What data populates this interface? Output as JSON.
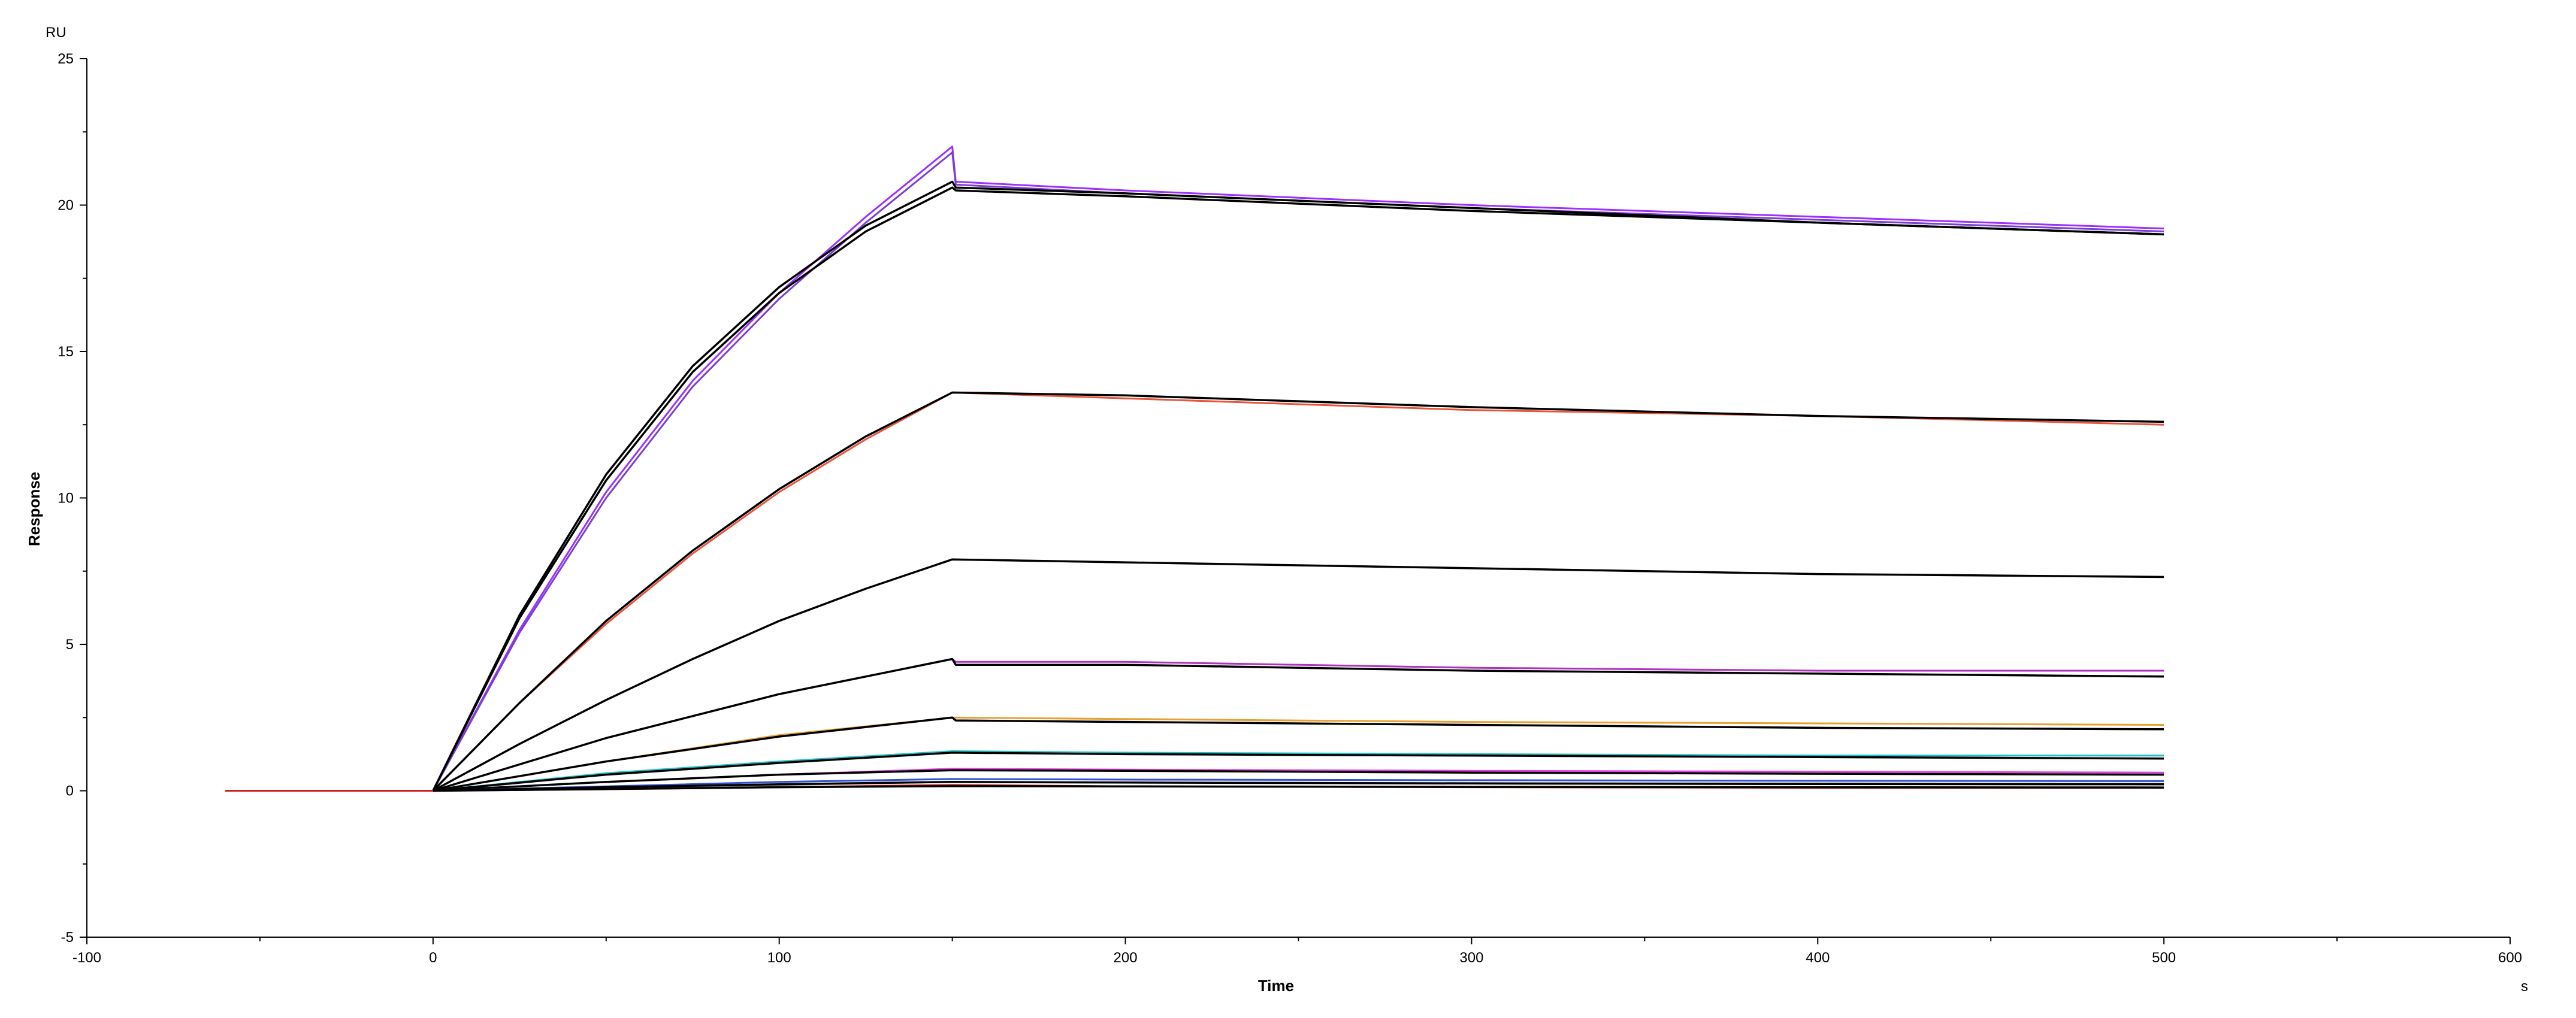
{
  "chart_data": {
    "type": "line",
    "xlabel": "Time",
    "ylabel": "Response",
    "x_unit": "s",
    "y_unit": "RU",
    "xlim": [
      -100,
      600
    ],
    "ylim": [
      -5,
      25
    ],
    "x_ticks": [
      -100,
      0,
      100,
      200,
      300,
      400,
      500,
      600
    ],
    "y_ticks": [
      -5,
      0,
      5,
      10,
      15,
      20,
      25
    ],
    "x_tick_labels": [
      "-100",
      "0",
      "100",
      "200",
      "300",
      "400",
      "500",
      "600"
    ],
    "y_tick_labels": [
      "-5",
      "0",
      "5",
      "10",
      "15",
      "20",
      "25"
    ],
    "grid": false,
    "legend": "none",
    "series": [
      {
        "color": "#9b30ff",
        "points": [
          [
            -60,
            0
          ],
          [
            0,
            0
          ],
          [
            25,
            5.5
          ],
          [
            50,
            10.2
          ],
          [
            75,
            14.0
          ],
          [
            100,
            17.0
          ],
          [
            125,
            19.6
          ],
          [
            150,
            22.0
          ],
          [
            151,
            20.8
          ],
          [
            200,
            20.5
          ],
          [
            300,
            20.0
          ],
          [
            400,
            19.6
          ],
          [
            500,
            19.2
          ]
        ]
      },
      {
        "color": "#7a3fd0",
        "points": [
          [
            -60,
            0
          ],
          [
            0,
            0
          ],
          [
            25,
            5.4
          ],
          [
            50,
            10.0
          ],
          [
            75,
            13.8
          ],
          [
            100,
            16.8
          ],
          [
            125,
            19.4
          ],
          [
            150,
            21.8
          ],
          [
            151,
            20.7
          ],
          [
            200,
            20.4
          ],
          [
            300,
            19.9
          ],
          [
            400,
            19.5
          ],
          [
            500,
            19.1
          ]
        ]
      },
      {
        "color": "#000000",
        "points": [
          [
            0,
            0
          ],
          [
            25,
            6.0
          ],
          [
            50,
            10.8
          ],
          [
            75,
            14.5
          ],
          [
            100,
            17.2
          ],
          [
            125,
            19.3
          ],
          [
            150,
            20.8
          ],
          [
            151,
            20.6
          ],
          [
            200,
            20.4
          ],
          [
            300,
            19.9
          ],
          [
            400,
            19.4
          ],
          [
            500,
            19.0
          ]
        ]
      },
      {
        "color": "#000000",
        "points": [
          [
            0,
            0
          ],
          [
            25,
            5.9
          ],
          [
            50,
            10.6
          ],
          [
            75,
            14.3
          ],
          [
            100,
            17.0
          ],
          [
            125,
            19.1
          ],
          [
            150,
            20.6
          ],
          [
            151,
            20.5
          ],
          [
            200,
            20.3
          ],
          [
            300,
            19.8
          ],
          [
            400,
            19.4
          ],
          [
            500,
            19.0
          ]
        ]
      },
      {
        "color": "#e8553c",
        "points": [
          [
            -60,
            0
          ],
          [
            0,
            0
          ],
          [
            25,
            3.0
          ],
          [
            50,
            5.7
          ],
          [
            75,
            8.1
          ],
          [
            100,
            10.2
          ],
          [
            125,
            12.0
          ],
          [
            150,
            13.6
          ],
          [
            200,
            13.4
          ],
          [
            300,
            13.0
          ],
          [
            400,
            12.8
          ],
          [
            500,
            12.5
          ]
        ]
      },
      {
        "color": "#000000",
        "points": [
          [
            0,
            0
          ],
          [
            25,
            3.0
          ],
          [
            50,
            5.8
          ],
          [
            75,
            8.2
          ],
          [
            100,
            10.3
          ],
          [
            125,
            12.1
          ],
          [
            150,
            13.6
          ],
          [
            200,
            13.5
          ],
          [
            300,
            13.1
          ],
          [
            400,
            12.8
          ],
          [
            500,
            12.6
          ]
        ]
      },
      {
        "color": "#1a8a1a",
        "points": [
          [
            -60,
            0
          ],
          [
            0,
            0
          ],
          [
            25,
            1.6
          ],
          [
            50,
            3.1
          ],
          [
            75,
            4.5
          ],
          [
            100,
            5.8
          ],
          [
            125,
            6.9
          ],
          [
            150,
            7.9
          ],
          [
            200,
            7.8
          ],
          [
            300,
            7.6
          ],
          [
            400,
            7.4
          ],
          [
            500,
            7.3
          ]
        ]
      },
      {
        "color": "#000000",
        "points": [
          [
            0,
            0
          ],
          [
            25,
            1.6
          ],
          [
            50,
            3.1
          ],
          [
            75,
            4.5
          ],
          [
            100,
            5.8
          ],
          [
            125,
            6.9
          ],
          [
            150,
            7.9
          ],
          [
            200,
            7.8
          ],
          [
            300,
            7.6
          ],
          [
            400,
            7.4
          ],
          [
            500,
            7.3
          ]
        ]
      },
      {
        "color": "#b030c0",
        "points": [
          [
            -60,
            0
          ],
          [
            0,
            0
          ],
          [
            50,
            1.8
          ],
          [
            100,
            3.3
          ],
          [
            150,
            4.5
          ],
          [
            151,
            4.4
          ],
          [
            200,
            4.4
          ],
          [
            300,
            4.2
          ],
          [
            400,
            4.1
          ],
          [
            500,
            4.1
          ]
        ]
      },
      {
        "color": "#000000",
        "points": [
          [
            0,
            0
          ],
          [
            50,
            1.8
          ],
          [
            100,
            3.3
          ],
          [
            150,
            4.5
          ],
          [
            151,
            4.3
          ],
          [
            200,
            4.3
          ],
          [
            300,
            4.1
          ],
          [
            400,
            4.0
          ],
          [
            500,
            3.9
          ]
        ]
      },
      {
        "color": "#e8a030",
        "points": [
          [
            -60,
            0
          ],
          [
            0,
            0
          ],
          [
            50,
            1.0
          ],
          [
            100,
            1.9
          ],
          [
            150,
            2.5
          ],
          [
            200,
            2.45
          ],
          [
            300,
            2.35
          ],
          [
            400,
            2.3
          ],
          [
            500,
            2.25
          ]
        ]
      },
      {
        "color": "#000000",
        "points": [
          [
            0,
            0
          ],
          [
            50,
            1.0
          ],
          [
            100,
            1.85
          ],
          [
            150,
            2.5
          ],
          [
            151,
            2.4
          ],
          [
            200,
            2.35
          ],
          [
            300,
            2.25
          ],
          [
            400,
            2.15
          ],
          [
            500,
            2.1
          ]
        ]
      },
      {
        "color": "#20c0c8",
        "points": [
          [
            -60,
            0
          ],
          [
            0,
            0
          ],
          [
            50,
            0.6
          ],
          [
            100,
            1.0
          ],
          [
            150,
            1.35
          ],
          [
            200,
            1.3
          ],
          [
            300,
            1.25
          ],
          [
            400,
            1.2
          ],
          [
            500,
            1.2
          ]
        ]
      },
      {
        "color": "#000000",
        "points": [
          [
            0,
            0
          ],
          [
            50,
            0.55
          ],
          [
            100,
            0.95
          ],
          [
            150,
            1.3
          ],
          [
            200,
            1.25
          ],
          [
            300,
            1.2
          ],
          [
            400,
            1.15
          ],
          [
            500,
            1.1
          ]
        ]
      },
      {
        "color": "#e040e0",
        "points": [
          [
            -60,
            0
          ],
          [
            0,
            0
          ],
          [
            50,
            0.3
          ],
          [
            100,
            0.55
          ],
          [
            150,
            0.75
          ],
          [
            200,
            0.72
          ],
          [
            300,
            0.68
          ],
          [
            400,
            0.65
          ],
          [
            500,
            0.62
          ]
        ]
      },
      {
        "color": "#000000",
        "points": [
          [
            0,
            0
          ],
          [
            50,
            0.3
          ],
          [
            100,
            0.55
          ],
          [
            150,
            0.7
          ],
          [
            200,
            0.68
          ],
          [
            300,
            0.62
          ],
          [
            400,
            0.58
          ],
          [
            500,
            0.55
          ]
        ]
      },
      {
        "color": "#3050d0",
        "points": [
          [
            -60,
            0
          ],
          [
            0,
            0
          ],
          [
            50,
            0.15
          ],
          [
            100,
            0.3
          ],
          [
            150,
            0.4
          ],
          [
            200,
            0.38
          ],
          [
            300,
            0.36
          ],
          [
            400,
            0.34
          ],
          [
            500,
            0.33
          ]
        ]
      },
      {
        "color": "#888888",
        "points": [
          [
            -60,
            0
          ],
          [
            0,
            0
          ],
          [
            50,
            0.1
          ],
          [
            100,
            0.2
          ],
          [
            150,
            0.3
          ],
          [
            200,
            0.28
          ],
          [
            300,
            0.26
          ],
          [
            400,
            0.25
          ],
          [
            500,
            0.24
          ]
        ]
      },
      {
        "color": "#cc2020",
        "points": [
          [
            -60,
            0
          ],
          [
            0,
            0
          ],
          [
            50,
            0.05
          ],
          [
            100,
            0.12
          ],
          [
            150,
            0.2
          ],
          [
            200,
            0.15
          ],
          [
            300,
            0.12
          ],
          [
            400,
            0.1
          ],
          [
            500,
            0.1
          ]
        ]
      },
      {
        "color": "#000000",
        "points": [
          [
            0,
            0
          ],
          [
            50,
            0.12
          ],
          [
            100,
            0.22
          ],
          [
            150,
            0.3
          ],
          [
            200,
            0.28
          ],
          [
            300,
            0.25
          ],
          [
            400,
            0.23
          ],
          [
            500,
            0.22
          ]
        ]
      },
      {
        "color": "#000000",
        "points": [
          [
            0,
            0
          ],
          [
            50,
            0.06
          ],
          [
            100,
            0.12
          ],
          [
            150,
            0.16
          ],
          [
            200,
            0.15
          ],
          [
            300,
            0.13
          ],
          [
            400,
            0.12
          ],
          [
            500,
            0.11
          ]
        ]
      }
    ]
  }
}
